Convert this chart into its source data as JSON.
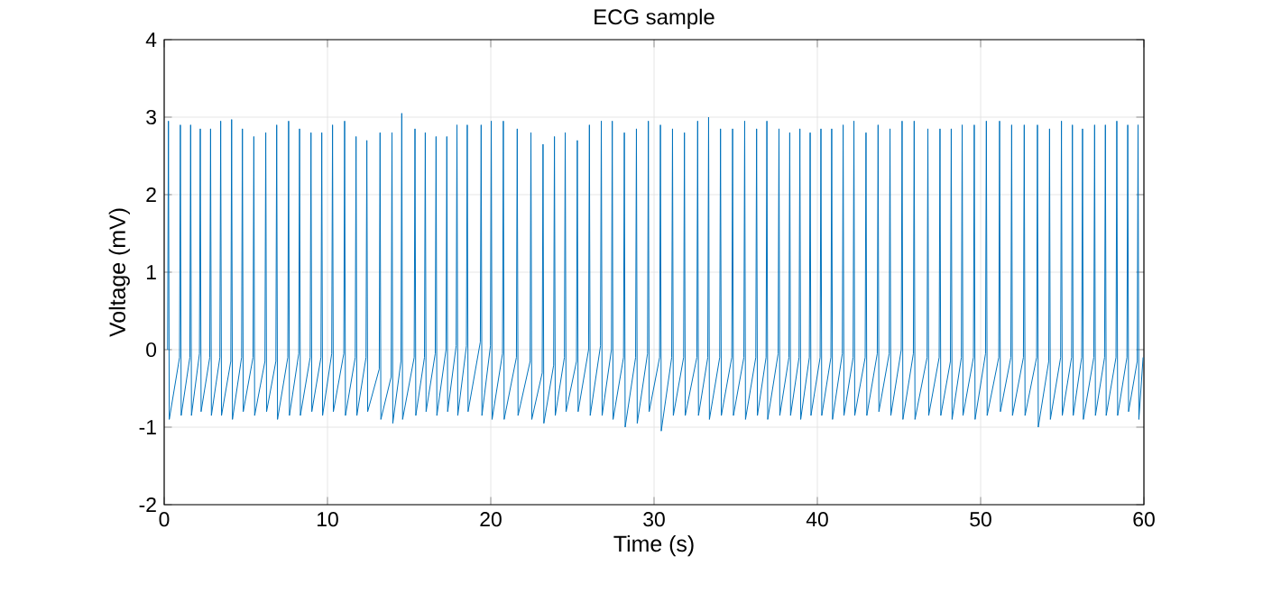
{
  "chart_data": {
    "type": "line",
    "title": "ECG sample",
    "xlabel": "Time (s)",
    "ylabel": "Voltage (mV)",
    "xlim": [
      0,
      60
    ],
    "ylim": [
      -2,
      4
    ],
    "xticks": [
      0,
      10,
      20,
      30,
      40,
      50,
      60
    ],
    "yticks": [
      -2,
      -1,
      0,
      1,
      2,
      3,
      4
    ],
    "grid": true,
    "series": [
      {
        "color": "#0072bd",
        "x": [
          0.21,
          0.26,
          0.31,
          0.94,
          0.99,
          1.04,
          1.57,
          1.62,
          1.67,
          2.16,
          2.21,
          2.26,
          2.79,
          2.84,
          2.89,
          3.41,
          3.46,
          3.51,
          4.08,
          4.13,
          4.18,
          4.74,
          4.79,
          4.84,
          5.44,
          5.49,
          5.54,
          6.17,
          6.22,
          6.27,
          6.84,
          6.89,
          6.94,
          7.57,
          7.62,
          7.67,
          8.24,
          8.29,
          8.34,
          8.94,
          8.99,
          9.04,
          9.6,
          9.65,
          9.7,
          10.26,
          10.31,
          10.36,
          11.0,
          11.05,
          11.1,
          11.7,
          11.75,
          11.8,
          12.36,
          12.41,
          12.46,
          13.17,
          13.22,
          13.27,
          13.9,
          13.95,
          14.0,
          14.5,
          14.55,
          14.6,
          15.31,
          15.36,
          15.41,
          15.94,
          15.99,
          16.04,
          16.6,
          16.65,
          16.7,
          17.26,
          17.31,
          17.36,
          17.88,
          17.93,
          17.98,
          18.51,
          18.56,
          18.61,
          19.36,
          19.41,
          19.46,
          19.98,
          20.03,
          20.08,
          20.72,
          20.77,
          20.82,
          21.57,
          21.62,
          21.67,
          22.41,
          22.46,
          22.51,
          23.15,
          23.2,
          23.25,
          23.85,
          23.9,
          23.95,
          24.51,
          24.56,
          24.61,
          25.25,
          25.3,
          25.35,
          25.99,
          26.04,
          26.09,
          26.72,
          26.77,
          26.82,
          27.39,
          27.44,
          27.49,
          28.13,
          28.18,
          28.23,
          28.87,
          28.92,
          28.97,
          29.6,
          29.65,
          29.7,
          30.34,
          30.39,
          30.44,
          31.08,
          31.13,
          31.18,
          31.81,
          31.86,
          31.91,
          32.62,
          32.67,
          32.72,
          33.29,
          33.34,
          33.39,
          34.02,
          34.07,
          34.12,
          34.76,
          34.81,
          34.86,
          35.5,
          35.55,
          35.6,
          36.23,
          36.28,
          36.33,
          36.86,
          36.91,
          36.96,
          37.6,
          37.65,
          37.7,
          38.26,
          38.31,
          38.36,
          38.88,
          38.93,
          38.98,
          39.51,
          39.56,
          39.61,
          40.17,
          40.22,
          40.27,
          40.83,
          40.88,
          40.93,
          41.53,
          41.58,
          41.63,
          42.19,
          42.24,
          42.29,
          42.93,
          42.98,
          43.03,
          43.67,
          43.72,
          43.77,
          44.4,
          44.45,
          44.5,
          45.14,
          45.19,
          45.24,
          45.88,
          45.93,
          45.98,
          46.72,
          46.77,
          46.82,
          47.46,
          47.51,
          47.56,
          48.15,
          48.2,
          48.25,
          48.82,
          48.87,
          48.92,
          49.56,
          49.61,
          49.66,
          50.3,
          50.35,
          50.4,
          51.11,
          51.16,
          51.21,
          51.85,
          51.9,
          51.95,
          52.62,
          52.67,
          52.72,
          53.43,
          53.48,
          53.53,
          54.17,
          54.22,
          54.27,
          54.9,
          54.95,
          55.0,
          55.57,
          55.62,
          55.67,
          56.19,
          56.24,
          56.29,
          56.93,
          56.98,
          57.03,
          57.59,
          57.64,
          57.69,
          58.29,
          58.34,
          58.39,
          58.96,
          59.01,
          59.06,
          59.59,
          59.64,
          59.69,
          59.95
        ],
        "values": [
          0.0,
          2.95,
          -0.9,
          -0.1,
          2.9,
          -0.85,
          -0.1,
          2.9,
          -0.85,
          -0.05,
          2.85,
          -0.8,
          -0.1,
          2.85,
          -0.85,
          -0.1,
          2.95,
          -0.85,
          -0.15,
          2.97,
          -0.9,
          -0.1,
          2.85,
          -0.8,
          -0.1,
          2.75,
          -0.85,
          -0.15,
          2.8,
          -0.8,
          -0.15,
          2.9,
          -0.9,
          -0.1,
          2.95,
          -0.85,
          -0.05,
          2.85,
          -0.85,
          -0.1,
          2.8,
          -0.8,
          -0.1,
          2.8,
          -0.85,
          -0.05,
          2.9,
          -0.8,
          -0.05,
          2.95,
          -0.85,
          -0.1,
          2.75,
          -0.85,
          -0.1,
          2.7,
          -0.8,
          -0.25,
          2.8,
          -0.9,
          -0.35,
          2.8,
          -0.95,
          -0.15,
          3.05,
          -0.9,
          -0.1,
          2.85,
          -0.85,
          -0.1,
          2.8,
          -0.8,
          -0.05,
          2.75,
          -0.85,
          0.0,
          2.75,
          -0.8,
          0.05,
          2.9,
          -0.85,
          0.05,
          2.9,
          -0.8,
          0.1,
          2.9,
          -0.85,
          0.05,
          2.95,
          -0.9,
          -0.05,
          2.95,
          -0.9,
          -0.1,
          2.85,
          -0.85,
          -0.15,
          2.8,
          -0.9,
          -0.3,
          2.65,
          -0.95,
          -0.2,
          2.75,
          -0.85,
          -0.1,
          2.8,
          -0.8,
          -0.15,
          2.7,
          -0.8,
          0.0,
          2.9,
          -0.85,
          0.05,
          2.95,
          -0.85,
          0.0,
          2.95,
          -0.9,
          -0.1,
          2.8,
          -1.0,
          -0.1,
          2.85,
          -0.95,
          -0.05,
          2.95,
          -0.8,
          -0.1,
          2.9,
          -1.05,
          -0.1,
          2.85,
          -0.85,
          -0.1,
          2.8,
          -0.85,
          -0.1,
          2.95,
          -0.85,
          -0.1,
          3.0,
          -0.9,
          -0.1,
          2.85,
          -0.85,
          -0.1,
          2.85,
          -0.85,
          -0.1,
          2.95,
          -0.9,
          -0.1,
          2.85,
          -0.85,
          -0.1,
          2.95,
          -0.9,
          -0.05,
          2.85,
          -0.85,
          -0.1,
          2.8,
          -0.85,
          -0.1,
          2.85,
          -0.9,
          -0.1,
          2.8,
          -0.85,
          -0.1,
          2.85,
          -0.85,
          -0.1,
          2.85,
          -0.9,
          -0.05,
          2.9,
          -0.85,
          -0.1,
          2.95,
          -0.85,
          -0.1,
          2.8,
          -0.85,
          -0.05,
          2.9,
          -0.8,
          -0.05,
          2.85,
          -0.85,
          0.0,
          2.95,
          -0.9,
          -0.05,
          2.95,
          -0.9,
          -0.1,
          2.85,
          -0.85,
          -0.1,
          2.85,
          -0.85,
          -0.15,
          2.85,
          -0.9,
          -0.1,
          2.9,
          -0.85,
          -0.1,
          2.9,
          -0.9,
          -0.05,
          2.95,
          -0.85,
          -0.1,
          2.95,
          -0.8,
          -0.1,
          2.9,
          -0.85,
          -0.1,
          2.9,
          -0.85,
          -0.1,
          2.9,
          -1.0,
          -0.15,
          2.85,
          -0.9,
          -0.1,
          2.95,
          -0.85,
          -0.1,
          2.9,
          -0.85,
          -0.1,
          2.85,
          -0.9,
          -0.1,
          2.9,
          -0.85,
          -0.1,
          2.9,
          -0.85,
          -0.1,
          2.95,
          -0.85,
          -0.1,
          2.9,
          -0.8,
          -0.15,
          2.9,
          -0.9,
          -0.1
        ]
      }
    ]
  }
}
